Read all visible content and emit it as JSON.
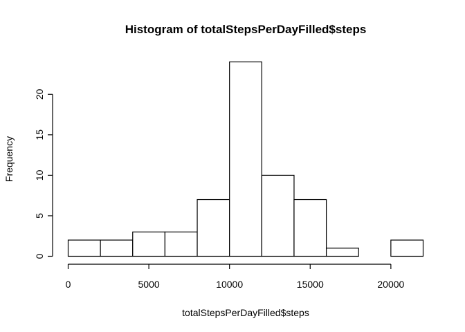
{
  "chart_data": {
    "type": "bar",
    "title": "Histogram of totalStepsPerDayFilled$steps",
    "xlabel": "totalStepsPerDayFilled$steps",
    "ylabel": "Frequency",
    "bins": [
      {
        "start": 0,
        "end": 2000,
        "count": 2
      },
      {
        "start": 2000,
        "end": 4000,
        "count": 2
      },
      {
        "start": 4000,
        "end": 6000,
        "count": 3
      },
      {
        "start": 6000,
        "end": 8000,
        "count": 3
      },
      {
        "start": 8000,
        "end": 10000,
        "count": 7
      },
      {
        "start": 10000,
        "end": 12000,
        "count": 24
      },
      {
        "start": 12000,
        "end": 14000,
        "count": 10
      },
      {
        "start": 14000,
        "end": 16000,
        "count": 7
      },
      {
        "start": 16000,
        "end": 18000,
        "count": 1
      },
      {
        "start": 18000,
        "end": 20000,
        "count": 0
      },
      {
        "start": 20000,
        "end": 22000,
        "count": 2
      }
    ],
    "xlim": [
      0,
      22000
    ],
    "ylim": [
      0,
      24
    ],
    "x_ticks": [
      0,
      5000,
      10000,
      15000,
      20000
    ],
    "x_tick_labels": [
      "0",
      "5000",
      "10000",
      "15000",
      "20000"
    ],
    "y_ticks": [
      0,
      5,
      10,
      15,
      20
    ],
    "y_tick_labels": [
      "0",
      "5",
      "10",
      "15",
      "20"
    ],
    "grid": false,
    "colors": {
      "bar_fill": "#ffffff",
      "bar_stroke": "#000000"
    }
  }
}
